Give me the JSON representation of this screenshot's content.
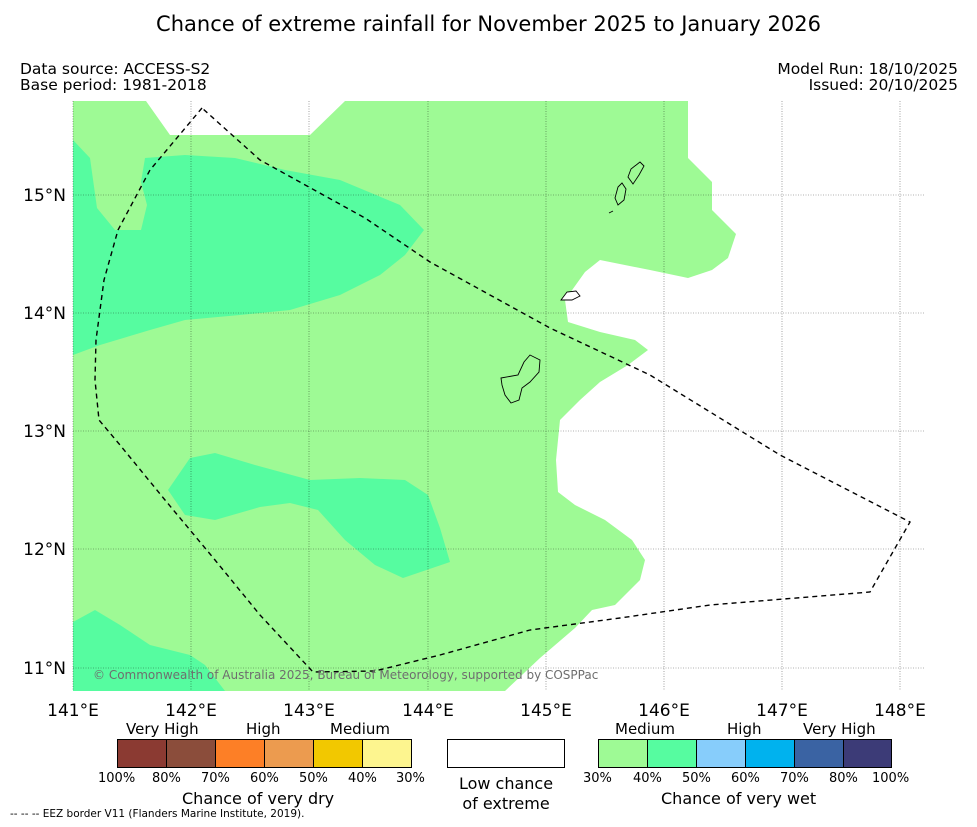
{
  "title": "Chance of extreme rainfall for November 2025 to January 2026",
  "header": {
    "data_source": "Data source: ACCESS-S2",
    "base_period": "Base period: 1981-2018",
    "model_run": "Model Run: 18/10/2025",
    "issued": "Issued: 20/10/2025"
  },
  "map": {
    "lat_labels": [
      "15°N",
      "14°N",
      "13°N",
      "12°N",
      "11°N"
    ],
    "lon_labels": [
      "141°E",
      "142°E",
      "143°E",
      "144°E",
      "145°E",
      "146°E",
      "147°E",
      "148°E"
    ],
    "copyright": "© Commonwealth of Australia 2025, Bureau of Meteorology, supported by COSPPac",
    "colors": {
      "wet_medium": "#9efa95",
      "wet_high": "#56fca0"
    }
  },
  "legend": {
    "dry": {
      "categories": [
        "Very High",
        "High",
        "Medium"
      ],
      "ticks": [
        "100%",
        "80%",
        "70%",
        "60%",
        "50%",
        "40%",
        "30%"
      ],
      "colors": [
        "#8b3a32",
        "#8b4d3b",
        "#fd7f26",
        "#ec9b4f",
        "#f2c800",
        "#fdf58f"
      ],
      "title": "Chance of very dry"
    },
    "low": {
      "line1": "Low chance",
      "line2": "of extreme",
      "color": "#ffffff"
    },
    "wet": {
      "categories": [
        "Medium",
        "High",
        "Very High"
      ],
      "ticks": [
        "30%",
        "40%",
        "50%",
        "60%",
        "70%",
        "80%",
        "100%"
      ],
      "colors": [
        "#9efa95",
        "#56fca0",
        "#87cdfb",
        "#00b2ee",
        "#3a63a3",
        "#3c3b77"
      ],
      "title": "Chance of very wet"
    }
  },
  "footnote": "--  --  -- EEZ border V11 (Flanders Marine Institute, 2019)."
}
